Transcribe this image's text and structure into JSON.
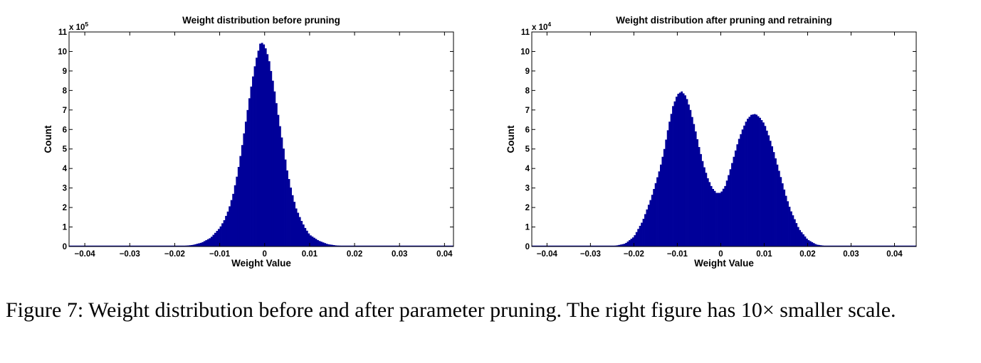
{
  "chart_data": [
    {
      "type": "histogram",
      "title": "Weight distribution before pruning",
      "xlabel": "Weight Value",
      "ylabel": "Count",
      "y_multiplier": "x 10",
      "y_multiplier_exp": "5",
      "xlim": [
        -0.0435,
        0.042
      ],
      "ylim": [
        0,
        11
      ],
      "xticks": [
        -0.04,
        -0.03,
        -0.02,
        -0.01,
        0,
        0.01,
        0.02,
        0.03,
        0.04
      ],
      "xtick_labels": [
        "−0.04",
        "−0.03",
        "−0.02",
        "−0.01",
        "0",
        "0.01",
        "0.02",
        "0.03",
        "0.04"
      ],
      "yticks": [
        0,
        1,
        2,
        3,
        4,
        5,
        6,
        7,
        8,
        9,
        10,
        11
      ],
      "ytick_labels": [
        "0",
        "1",
        "2",
        "3",
        "4",
        "5",
        "6",
        "7",
        "8",
        "9",
        "10",
        "11"
      ],
      "bin_width": 0.0004,
      "color": "#000099",
      "x": [
        -0.02,
        -0.018,
        -0.016,
        -0.014,
        -0.012,
        -0.01,
        -0.009,
        -0.008,
        -0.007,
        -0.006,
        -0.005,
        -0.004,
        -0.003,
        -0.002,
        -0.0015,
        -0.001,
        -0.0005,
        0,
        0.0005,
        0.001,
        0.002,
        0.003,
        0.004,
        0.005,
        0.006,
        0.007,
        0.008,
        0.009,
        0.01,
        0.012,
        0.014,
        0.016,
        0.018,
        0.02
      ],
      "values": [
        0,
        0.03,
        0.08,
        0.2,
        0.45,
        0.95,
        1.35,
        1.9,
        2.7,
        3.8,
        5.2,
        6.7,
        8.2,
        9.5,
        9.95,
        10.4,
        10.45,
        10.3,
        9.95,
        9.5,
        8.25,
        6.75,
        5.3,
        3.9,
        2.8,
        1.95,
        1.4,
        0.95,
        0.6,
        0.3,
        0.12,
        0.05,
        0.02,
        0
      ]
    },
    {
      "type": "histogram",
      "title": "Weight distribution after pruning and retraining",
      "xlabel": "Weight Value",
      "ylabel": "Count",
      "y_multiplier": "x 10",
      "y_multiplier_exp": "4",
      "xlim": [
        -0.0435,
        0.045
      ],
      "ylim": [
        0,
        11
      ],
      "xticks": [
        -0.04,
        -0.03,
        -0.02,
        -0.01,
        0,
        0.01,
        0.02,
        0.03,
        0.04
      ],
      "xtick_labels": [
        "−0.04",
        "−0.03",
        "−0.02",
        "−0.01",
        "0",
        "0.01",
        "0.02",
        "0.03",
        "0.04"
      ],
      "yticks": [
        0,
        1,
        2,
        3,
        4,
        5,
        6,
        7,
        8,
        9,
        10,
        11
      ],
      "ytick_labels": [
        "0",
        "1",
        "2",
        "3",
        "4",
        "5",
        "6",
        "7",
        "8",
        "9",
        "10",
        "11"
      ],
      "bin_width": 0.0004,
      "color": "#000099",
      "x": [
        -0.026,
        -0.024,
        -0.022,
        -0.02,
        -0.018,
        -0.016,
        -0.014,
        -0.013,
        -0.012,
        -0.011,
        -0.01,
        -0.009,
        -0.008,
        -0.007,
        -0.006,
        -0.005,
        -0.004,
        -0.003,
        -0.002,
        -0.001,
        0,
        0.001,
        0.002,
        0.003,
        0.004,
        0.005,
        0.006,
        0.007,
        0.008,
        0.009,
        0.01,
        0.011,
        0.012,
        0.013,
        0.014,
        0.015,
        0.016,
        0.018,
        0.02,
        0.022,
        0.024,
        0.026
      ],
      "values": [
        0,
        0.05,
        0.15,
        0.5,
        1.3,
        2.5,
        4.0,
        5.0,
        6.2,
        7.2,
        7.8,
        7.95,
        7.7,
        7.0,
        6.1,
        5.1,
        4.2,
        3.5,
        3.0,
        2.75,
        2.75,
        3.1,
        3.8,
        4.6,
        5.4,
        6.0,
        6.5,
        6.75,
        6.8,
        6.6,
        6.3,
        5.7,
        5.0,
        4.2,
        3.4,
        2.6,
        1.9,
        0.9,
        0.35,
        0.1,
        0.03,
        0
      ]
    }
  ],
  "caption": "Figure 7: Weight distribution before and after parameter pruning. The right figure has 10× smaller scale."
}
